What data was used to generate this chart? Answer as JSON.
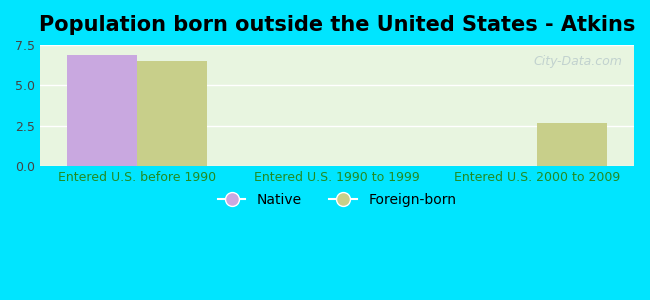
{
  "title": "Population born outside the United States - Atkins",
  "categories": [
    "Entered U.S. before 1990",
    "Entered U.S. 1990 to 1999",
    "Entered U.S. 2000 to 2009"
  ],
  "native_values": [
    6.9,
    0,
    0
  ],
  "foreign_values": [
    6.5,
    0,
    2.7
  ],
  "native_color": "#c9a8e0",
  "foreign_color": "#c8cf8a",
  "background_outer": "#00e5ff",
  "background_inner": "#e8f5e0",
  "ylim": [
    0,
    7.5
  ],
  "yticks": [
    0,
    2.5,
    5,
    7.5
  ],
  "bar_width": 0.35,
  "legend_native_label": "Native",
  "legend_foreign_label": "Foreign-born",
  "title_fontsize": 15,
  "tick_fontsize": 9,
  "legend_fontsize": 10,
  "watermark_text": "City-Data.com"
}
